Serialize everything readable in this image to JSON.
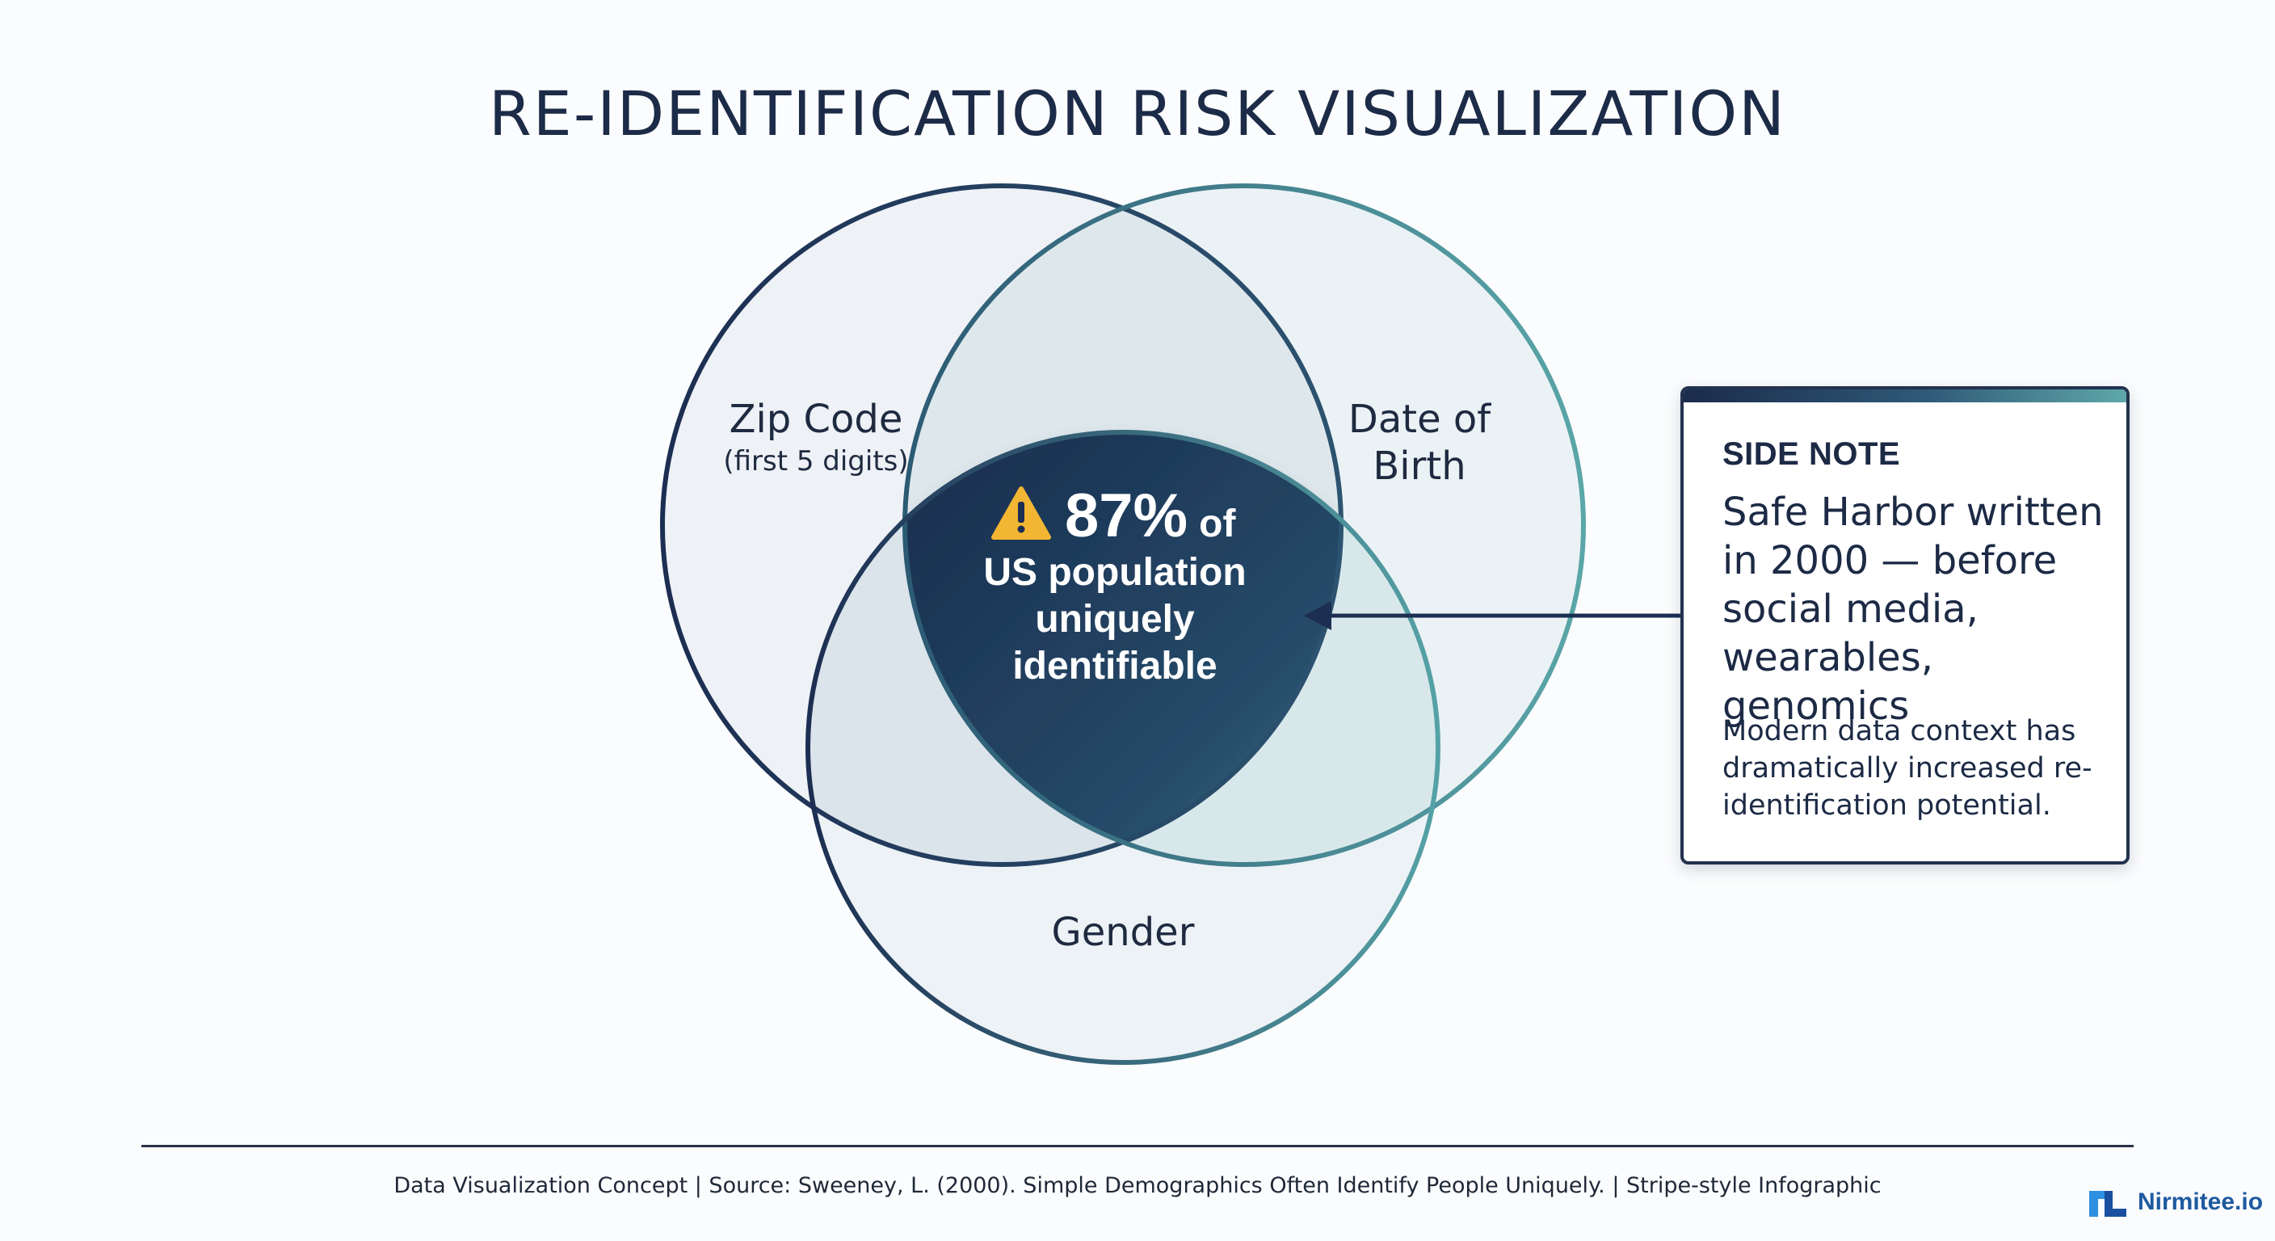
{
  "title": "RE-IDENTIFICATION RISK VISUALIZATION",
  "diagram": {
    "circles": [
      {
        "name": "Zip Code",
        "sublabel": "(first 5 digits)"
      },
      {
        "name_line1": "Date of",
        "name_line2": "Birth"
      },
      {
        "name": "Gender"
      }
    ],
    "center": {
      "warning_icon": "warning-triangle-icon",
      "stat": "87%",
      "stat_suffix": "of",
      "line1": "US population",
      "line2": "uniquely",
      "line3": "identifiable"
    },
    "colors": {
      "navy": "#1c2e52",
      "teal": "#5aa6a8",
      "warning": "#f2b632"
    }
  },
  "side_note": {
    "heading": "SIDE NOTE",
    "main": "Safe Harbor written in 2000 — before social media, wearables, genomics",
    "sub": "Modern data context has dramatically increased re-identification potential."
  },
  "footer": {
    "caption": "Data Visualization Concept | Source: Sweeney, L. (2000). Simple Demographics Often Identify People Uniquely. | Stripe-style Infographic",
    "brand": "Nirmitee.io"
  }
}
